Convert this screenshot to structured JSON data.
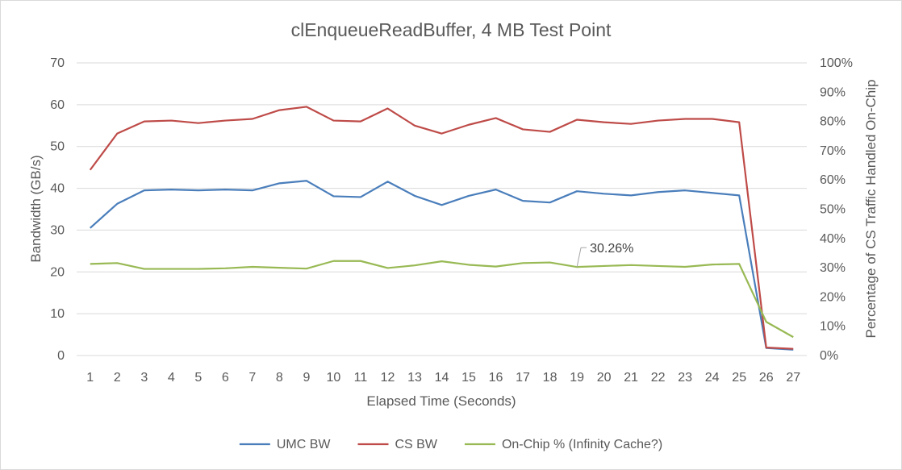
{
  "chart_data": {
    "type": "line",
    "title": "clEnqueueReadBuffer,  4 MB Test Point",
    "xlabel": "Elapsed Time (Seconds)",
    "ylabel": "Bandwidth (GB/s)",
    "y2label": "Percentage of CS Traffic Handled On-Chip",
    "x": [
      1,
      2,
      3,
      4,
      5,
      6,
      7,
      8,
      9,
      10,
      11,
      12,
      13,
      14,
      15,
      16,
      17,
      18,
      19,
      20,
      21,
      22,
      23,
      24,
      25,
      26,
      27
    ],
    "ylim": [
      0,
      70
    ],
    "yticks": [
      0,
      10,
      20,
      30,
      40,
      50,
      60,
      70
    ],
    "y2lim": [
      0,
      100
    ],
    "y2ticks": [
      "0%",
      "10%",
      "20%",
      "30%",
      "40%",
      "50%",
      "60%",
      "70%",
      "80%",
      "90%",
      "100%"
    ],
    "grid": true,
    "legend_position": "bottom",
    "series": [
      {
        "name": "UMC BW",
        "axis": "left",
        "color": "#4a7ebb",
        "values": [
          30.5,
          36.3,
          39.5,
          39.7,
          39.5,
          39.7,
          39.5,
          41.2,
          41.8,
          38.1,
          37.9,
          41.6,
          38.2,
          36.0,
          38.2,
          39.7,
          37.0,
          36.6,
          39.3,
          38.7,
          38.3,
          39.1,
          39.5,
          38.9,
          38.3,
          1.8,
          1.4
        ]
      },
      {
        "name": "CS BW",
        "axis": "left",
        "color": "#be4b48",
        "values": [
          44.4,
          53.1,
          56.0,
          56.2,
          55.6,
          56.2,
          56.6,
          58.7,
          59.5,
          56.2,
          56.0,
          59.1,
          55.0,
          53.1,
          55.2,
          56.8,
          54.1,
          53.5,
          56.4,
          55.8,
          55.4,
          56.2,
          56.6,
          56.6,
          55.8,
          1.9,
          1.6
        ]
      },
      {
        "name": "On-Chip % (Infinity Cache?)",
        "axis": "right",
        "color": "#98b954",
        "values": [
          31.3,
          31.6,
          29.6,
          29.6,
          29.6,
          29.8,
          30.3,
          30.0,
          29.7,
          32.3,
          32.3,
          29.9,
          30.8,
          32.2,
          31.0,
          30.4,
          31.6,
          31.8,
          30.26,
          30.6,
          30.9,
          30.6,
          30.3,
          31.1,
          31.3,
          11.5,
          6.3
        ]
      }
    ],
    "annotations": [
      {
        "text": "30.26%",
        "series": "On-Chip % (Infinity Cache?)",
        "x": 19
      }
    ]
  }
}
